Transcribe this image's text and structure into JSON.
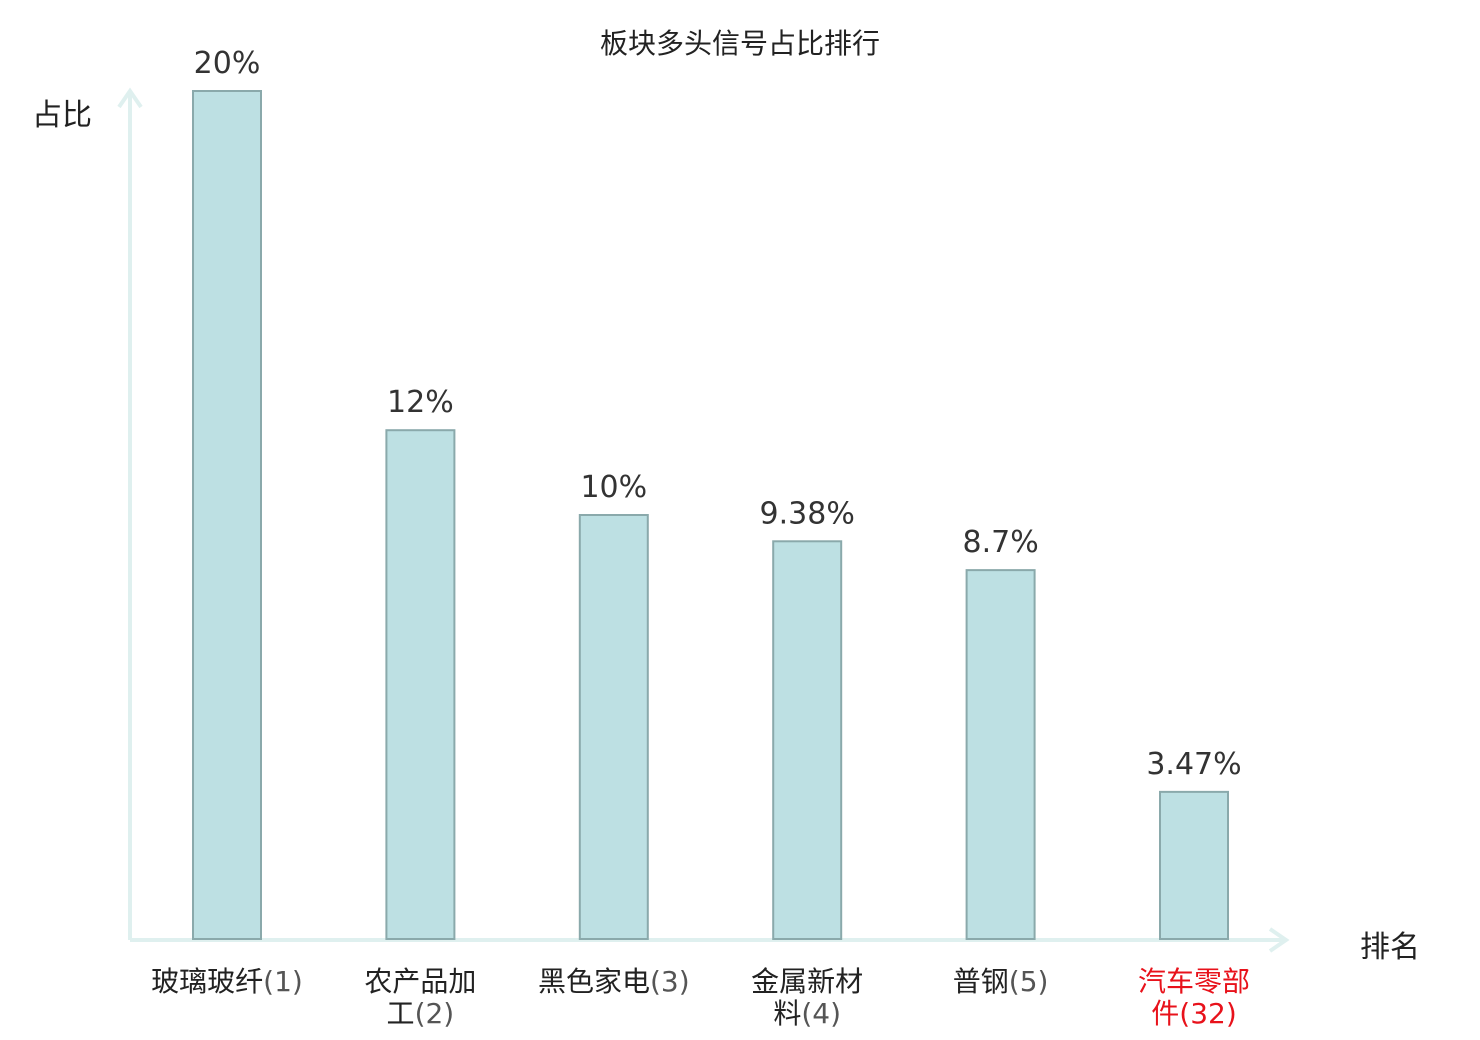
{
  "chart_data": {
    "type": "bar",
    "title": "板块多头信号占比排行",
    "ylabel": "占比",
    "xlabel": "排名",
    "ylim": [
      0,
      20
    ],
    "bar_color": "#bde0e3",
    "bar_stroke": "#8aa9ab",
    "axis_color": "#dff0ef",
    "highlight_color": "#e8121b",
    "categories": [
      {
        "name_lines": [
          "玻璃玻纤"
        ],
        "rank": "(1)",
        "value": 20,
        "label": "20%",
        "highlight": false
      },
      {
        "name_lines": [
          "农产品加",
          "工"
        ],
        "rank": "(2)",
        "value": 12,
        "label": "12%",
        "highlight": false
      },
      {
        "name_lines": [
          "黑色家电"
        ],
        "rank": "(3)",
        "value": 10,
        "label": "10%",
        "highlight": false
      },
      {
        "name_lines": [
          "金属新材",
          "料"
        ],
        "rank": "(4)",
        "value": 9.38,
        "label": "9.38%",
        "highlight": false
      },
      {
        "name_lines": [
          "普钢"
        ],
        "rank": "(5)",
        "value": 8.7,
        "label": "8.7%",
        "highlight": false
      },
      {
        "name_lines": [
          "汽车零部",
          "件"
        ],
        "rank": "(32)",
        "value": 3.47,
        "label": "3.47%",
        "highlight": true
      }
    ]
  }
}
